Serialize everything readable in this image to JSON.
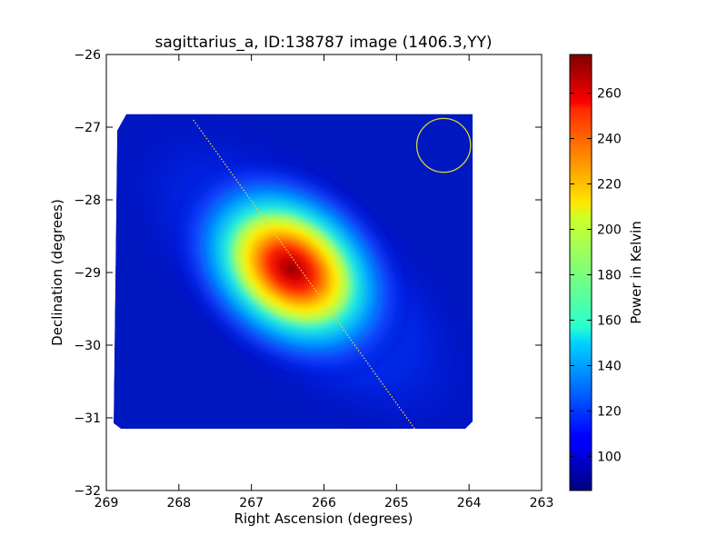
{
  "chart_data": {
    "type": "heatmap",
    "title": "sagittarius_a, ID:138787 image (1406.3,YY)",
    "xlabel": "Right Ascension (degrees)",
    "ylabel": "Declination (degrees)",
    "xlim": [
      269,
      263
    ],
    "ylim": [
      -32,
      -26
    ],
    "xticks": [
      "269",
      "268",
      "267",
      "266",
      "265",
      "264",
      "263"
    ],
    "yticks": [
      "−26",
      "−27",
      "−28",
      "−29",
      "−30",
      "−31",
      "−32"
    ],
    "colorbar": {
      "label": "Power in Kelvin",
      "range": [
        85,
        277
      ],
      "ticks": [
        "100",
        "120",
        "140",
        "160",
        "180",
        "200",
        "220",
        "240",
        "260"
      ],
      "colormap": "jet"
    },
    "map_extent": {
      "ra": [
        268.9,
        263.95
      ],
      "dec": [
        -31.15,
        -26.82
      ]
    },
    "source": {
      "ra": 266.45,
      "dec": -28.95,
      "peak_power": 277,
      "background_power": 90
    },
    "annotations": {
      "beam_circle": {
        "ra": 264.35,
        "dec": -27.25,
        "radius_deg": 0.37,
        "color": "#d8d830"
      },
      "galactic_plane_line": {
        "from": [
          267.8,
          -26.9
        ],
        "to": [
          264.75,
          -31.15
        ],
        "color": "#f0d040"
      }
    }
  }
}
